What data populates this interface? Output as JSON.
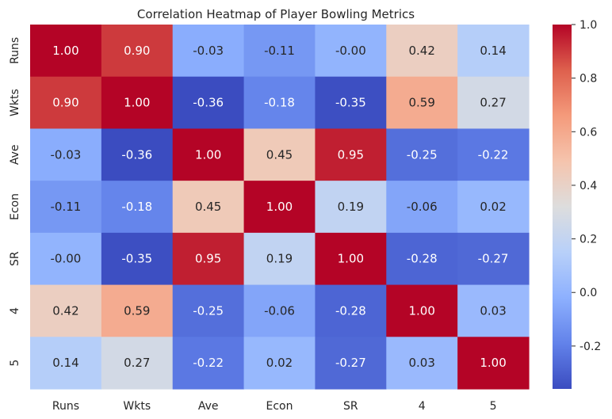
{
  "chart_data": {
    "type": "heatmap",
    "title": "Correlation Heatmap of Player Bowling Metrics",
    "xlabel": "",
    "ylabel": "",
    "x_categories": [
      "Runs",
      "Wkts",
      "Ave",
      "Econ",
      "SR",
      "4",
      "5"
    ],
    "y_categories": [
      "Runs",
      "Wkts",
      "Ave",
      "Econ",
      "SR",
      "4",
      "5"
    ],
    "values": [
      [
        "1.00",
        "0.90",
        "-0.03",
        "-0.11",
        "-0.00",
        "0.42",
        "0.14"
      ],
      [
        "0.90",
        "1.00",
        "-0.36",
        "-0.18",
        "-0.35",
        "0.59",
        "0.27"
      ],
      [
        "-0.03",
        "-0.36",
        "1.00",
        "0.45",
        "0.95",
        "-0.25",
        "-0.22"
      ],
      [
        "-0.11",
        "-0.18",
        "0.45",
        "1.00",
        "0.19",
        "-0.06",
        "0.02"
      ],
      [
        "-0.00",
        "-0.35",
        "0.95",
        "0.19",
        "1.00",
        "-0.28",
        "-0.27"
      ],
      [
        "0.42",
        "0.59",
        "-0.25",
        "-0.06",
        "-0.28",
        "1.00",
        "0.03"
      ],
      [
        "0.14",
        "0.27",
        "-0.22",
        "0.02",
        "-0.27",
        "0.03",
        "1.00"
      ]
    ],
    "colormap": "coolwarm",
    "vmin": -0.36,
    "vmax": 1.0,
    "colorbar": {
      "ticks": [
        "-0.2",
        "0.0",
        "0.2",
        "0.4",
        "0.6",
        "0.8",
        "1.0"
      ]
    },
    "annotations": true,
    "grid": false
  }
}
